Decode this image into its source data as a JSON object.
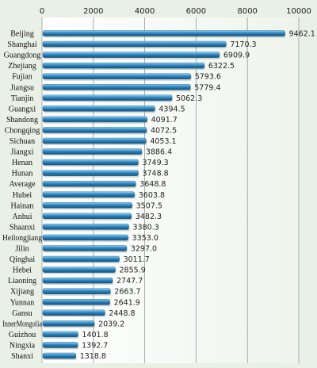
{
  "chart_data": {
    "type": "bar",
    "orientation": "horizontal",
    "title": "",
    "xlabel": "",
    "ylabel": "",
    "xlim": [
      0,
      10000
    ],
    "x_ticks": [
      0,
      2000,
      4000,
      6000,
      8000,
      10000
    ],
    "x_tick_labels": [
      "0",
      "2000",
      "4000",
      "6000",
      "8000",
      "10000"
    ],
    "x_axis_position": "top",
    "grid": true,
    "legend": "none",
    "colors": {
      "background": "#e9f0e6",
      "plot_background": "#ffffff",
      "bar": "#2e86c1",
      "bar_dark": "#1d5f8c",
      "bar_light": "#6db8e6",
      "grid": "#9a9a9a"
    },
    "categories": [
      "Beijing",
      "Shanghai",
      "Guangdong",
      "Zhejiang",
      "Fujian",
      "Jiangsu",
      "Tianjin",
      "Guangxi",
      "Shandong",
      "Chongqing",
      "Sichuan",
      "Jiangxi",
      "Henan",
      "Hunan",
      "Average",
      "Hubei",
      "Hainan",
      "Anhui",
      "Shaanxi",
      "Heilongjiang",
      "Jilin",
      "Qinghai",
      "Hebei",
      "Liaoning",
      "Xijiang",
      "Yunnan",
      "Gansu",
      "InnerMongolia",
      "Guizhou",
      "Ningxia",
      "Shanxi"
    ],
    "values": [
      9462.1,
      7170.3,
      6909.9,
      6322.5,
      5793.6,
      5779.4,
      5062.3,
      4394.5,
      4091.7,
      4072.5,
      4053.1,
      3886.4,
      3749.3,
      3748.8,
      3648.8,
      3603.8,
      3507.5,
      3482.3,
      3380.3,
      3353.0,
      3297.0,
      3011.7,
      2855.9,
      2747.7,
      2663.7,
      2641.9,
      2448.8,
      2039.2,
      1401.8,
      1392.7,
      1318.8
    ],
    "value_labels": [
      "9462.1",
      "7170.3",
      "6909.9",
      "6322.5",
      "5793.6",
      "5779.4",
      "5062.3",
      "4394.5",
      "4091.7",
      "4072.5",
      "4053.1",
      "3886.4",
      "3749.3",
      "3748.8",
      "3648.8",
      "3603.8",
      "3507.5",
      "3482.3",
      "3380.3",
      "3353.0",
      "3297.0",
      "3011.7",
      "2855.9",
      "2747.7",
      "2663.7",
      "2641.9",
      "2448.8",
      "2039.2",
      "1401.8",
      "1392.7",
      "1318.8"
    ]
  }
}
